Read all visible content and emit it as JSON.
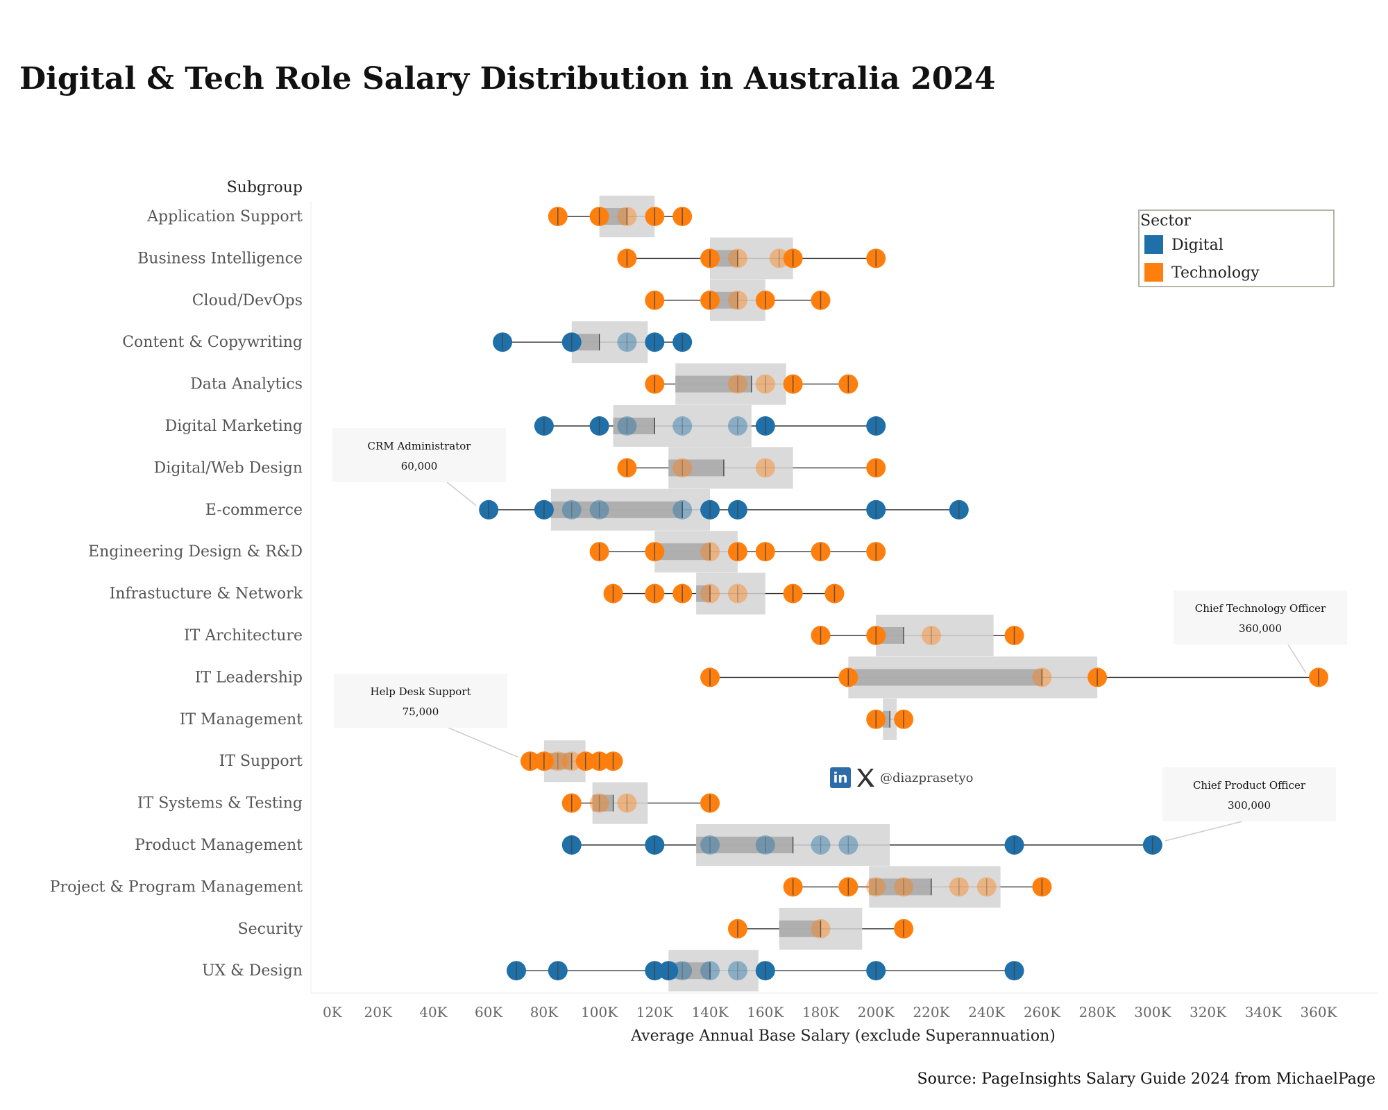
{
  "title": "Digital & Tech Role Salary Distribution in Australia 2024",
  "source": "Source: PageInsights Salary Guide 2024 from MichaelPage",
  "social": {
    "handle": "@diazprasetyo",
    "icons": [
      "linkedin-icon",
      "x-icon"
    ]
  },
  "colors": {
    "Digital": "#1f6fa8",
    "Technology": "#ff7f0e",
    "box_outer": "#d4d4d4",
    "box_inner": "#aaaaaa",
    "whisker": "#333333",
    "axis_text": "#666666"
  },
  "chart_data": {
    "type": "scatter",
    "subtitle_row_header": "Subgroup",
    "xlabel": "Average Annual Base Salary (exclude Superannuation)",
    "xlim": [
      0,
      360000
    ],
    "x_ticks": [
      0,
      20000,
      40000,
      60000,
      80000,
      100000,
      120000,
      140000,
      160000,
      180000,
      200000,
      220000,
      240000,
      260000,
      280000,
      300000,
      320000,
      340000,
      360000
    ],
    "x_tick_labels": [
      "0K",
      "20K",
      "40K",
      "60K",
      "80K",
      "100K",
      "120K",
      "140K",
      "160K",
      "180K",
      "200K",
      "220K",
      "240K",
      "260K",
      "280K",
      "300K",
      "320K",
      "340K",
      "360K"
    ],
    "grid": false,
    "legend": {
      "title": "Sector",
      "placement": "top-right",
      "entries": [
        "Digital",
        "Technology"
      ]
    },
    "rows": [
      {
        "subgroup": "Application Support",
        "sector": "Technology",
        "values": [
          85000,
          100000,
          110000,
          120000,
          130000
        ],
        "box": [
          100000,
          110000,
          120000
        ]
      },
      {
        "subgroup": "Business Intelligence",
        "sector": "Technology",
        "values": [
          110000,
          140000,
          150000,
          165000,
          170000,
          200000
        ],
        "box": [
          140000,
          150000,
          170000
        ]
      },
      {
        "subgroup": "Cloud/DevOps",
        "sector": "Technology",
        "values": [
          120000,
          140000,
          150000,
          160000,
          180000
        ],
        "box": [
          140000,
          150000,
          160000
        ]
      },
      {
        "subgroup": "Content & Copywriting",
        "sector": "Digital",
        "values": [
          65000,
          90000,
          110000,
          120000,
          130000
        ],
        "box": [
          90000,
          100000,
          117500
        ]
      },
      {
        "subgroup": "Data Analytics",
        "sector": "Technology",
        "values": [
          120000,
          150000,
          160000,
          170000,
          190000
        ],
        "box": [
          127500,
          155000,
          167500
        ]
      },
      {
        "subgroup": "Digital Marketing",
        "sector": "Digital",
        "values": [
          80000,
          100000,
          110000,
          130000,
          150000,
          160000,
          200000
        ],
        "box": [
          105000,
          120000,
          155000
        ]
      },
      {
        "subgroup": "Digital/Web Design",
        "sector": "Technology",
        "values": [
          110000,
          130000,
          160000,
          200000
        ],
        "box": [
          125000,
          145000,
          170000
        ]
      },
      {
        "subgroup": "E-commerce",
        "sector": "Digital",
        "values": [
          60000,
          80000,
          90000,
          100000,
          130000,
          140000,
          150000,
          200000,
          230000
        ],
        "box": [
          82500,
          130000,
          140000
        ]
      },
      {
        "subgroup": "Engineering Design & R&D",
        "sector": "Technology",
        "values": [
          100000,
          120000,
          140000,
          150000,
          160000,
          180000,
          200000
        ],
        "box": [
          120000,
          140000,
          150000
        ]
      },
      {
        "subgroup": "Infrastucture & Network",
        "sector": "Technology",
        "values": [
          105000,
          120000,
          130000,
          140000,
          150000,
          170000,
          185000
        ],
        "box": [
          135000,
          140000,
          160000
        ]
      },
      {
        "subgroup": "IT Architecture",
        "sector": "Technology",
        "values": [
          180000,
          200000,
          220000,
          250000
        ],
        "box": [
          200000,
          210000,
          242500
        ]
      },
      {
        "subgroup": "IT Leadership",
        "sector": "Technology",
        "values": [
          140000,
          190000,
          260000,
          280000,
          360000
        ],
        "box": [
          190000,
          260000,
          280000
        ]
      },
      {
        "subgroup": "IT Management",
        "sector": "Technology",
        "values": [
          200000,
          210000
        ],
        "box": [
          202500,
          205000,
          207500
        ]
      },
      {
        "subgroup": "IT Support",
        "sector": "Technology",
        "values": [
          75000,
          80000,
          85000,
          90000,
          95000,
          100000,
          105000
        ],
        "box": [
          80000,
          90000,
          95000
        ]
      },
      {
        "subgroup": "IT Systems & Testing",
        "sector": "Technology",
        "values": [
          90000,
          100000,
          110000,
          140000
        ],
        "box": [
          97500,
          105000,
          117500
        ]
      },
      {
        "subgroup": "Product Management",
        "sector": "Digital",
        "values": [
          90000,
          120000,
          140000,
          160000,
          180000,
          190000,
          250000,
          300000
        ],
        "box": [
          135000,
          170000,
          205000
        ]
      },
      {
        "subgroup": "Project & Program Management",
        "sector": "Technology",
        "values": [
          170000,
          190000,
          200000,
          210000,
          230000,
          240000,
          260000
        ],
        "box": [
          197500,
          220000,
          245000
        ]
      },
      {
        "subgroup": "Security",
        "sector": "Technology",
        "values": [
          150000,
          180000,
          210000
        ],
        "box": [
          165000,
          180000,
          195000
        ]
      },
      {
        "subgroup": "UX & Design",
        "sector": "Digital",
        "values": [
          70000,
          85000,
          120000,
          125000,
          130000,
          140000,
          150000,
          160000,
          200000,
          250000
        ],
        "box": [
          125000,
          140000,
          157500
        ]
      }
    ],
    "annotations": [
      {
        "label": "CRM Administrator",
        "value_text": "60,000",
        "subgroup": "E-commerce",
        "x": 60000
      },
      {
        "label": "Help Desk Support",
        "value_text": "75,000",
        "subgroup": "IT Support",
        "x": 75000
      },
      {
        "label": "Chief Technology Officer",
        "value_text": "360,000",
        "subgroup": "IT Leadership",
        "x": 360000
      },
      {
        "label": "Chief Product Officer",
        "value_text": "300,000",
        "subgroup": "Product Management",
        "x": 300000
      }
    ]
  }
}
